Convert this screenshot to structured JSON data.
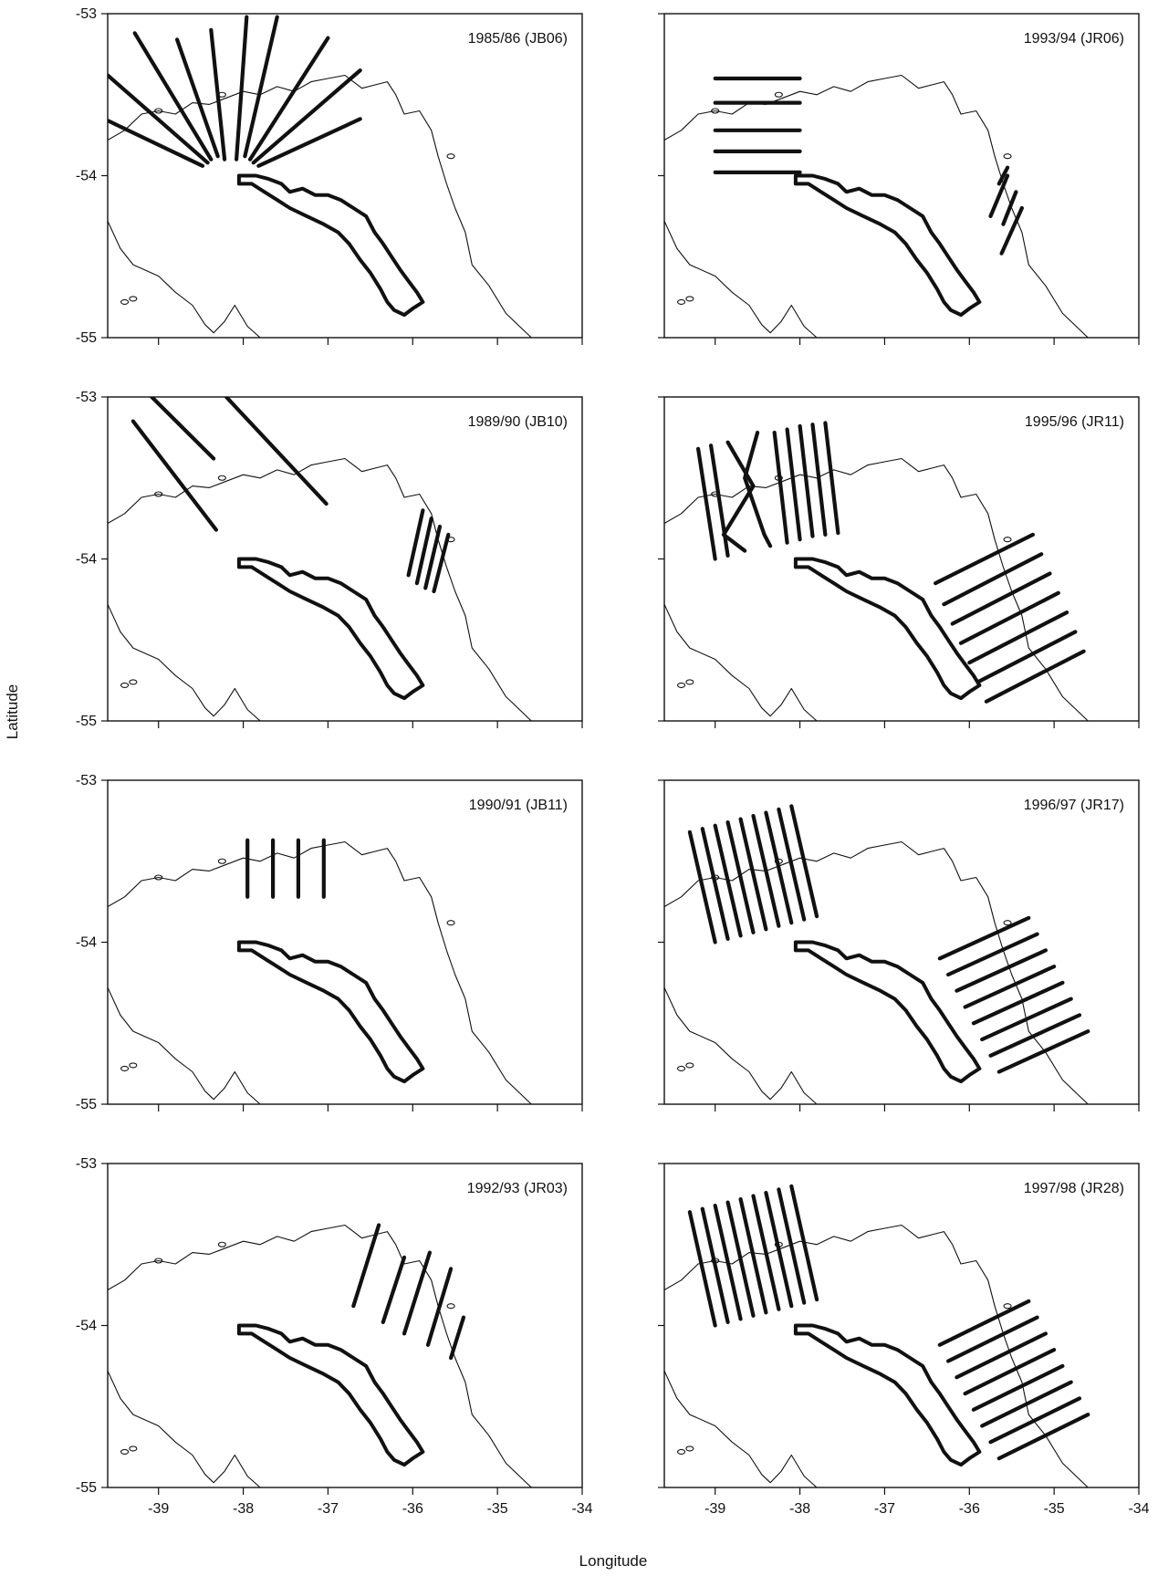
{
  "chart_data": {
    "type": "map",
    "xlabel": "Longitude",
    "ylabel": "Latitude",
    "xlim": [
      -39.6,
      -34
    ],
    "ylim": [
      -55,
      -53
    ],
    "xticks": [
      "-39",
      "-38",
      "-37",
      "-36",
      "-35",
      "-34"
    ],
    "yticks": [
      "-53",
      "-54",
      "-55"
    ],
    "coastline": [
      [
        -39.6,
        -53.78
      ],
      [
        -39.4,
        -53.72
      ],
      [
        -39.2,
        -53.62
      ],
      [
        -39.0,
        -53.6
      ],
      [
        -38.8,
        -53.62
      ],
      [
        -38.6,
        -53.55
      ],
      [
        -38.4,
        -53.56
      ],
      [
        -38.2,
        -53.52
      ],
      [
        -38.0,
        -53.48
      ],
      [
        -37.8,
        -53.5
      ],
      [
        -37.6,
        -53.45
      ],
      [
        -37.4,
        -53.48
      ],
      [
        -37.2,
        -53.42
      ],
      [
        -37.0,
        -53.4
      ],
      [
        -36.8,
        -53.38
      ],
      [
        -36.6,
        -53.46
      ],
      [
        -36.45,
        -53.44
      ],
      [
        -36.3,
        -53.42
      ],
      [
        -36.2,
        -53.5
      ],
      [
        -36.1,
        -53.62
      ],
      [
        -35.92,
        -53.6
      ],
      [
        -35.78,
        -53.72
      ],
      [
        -35.7,
        -53.88
      ],
      [
        -35.6,
        -54.05
      ],
      [
        -35.5,
        -54.2
      ],
      [
        -35.38,
        -54.35
      ],
      [
        -35.3,
        -54.55
      ],
      [
        -35.1,
        -54.68
      ],
      [
        -34.9,
        -54.85
      ],
      [
        -34.6,
        -55.0
      ],
      [
        -39.6,
        -54.28
      ],
      [
        -39.45,
        -54.45
      ],
      [
        -39.3,
        -54.55
      ],
      [
        -39.0,
        -54.62
      ],
      [
        -38.8,
        -54.72
      ],
      [
        -38.6,
        -54.8
      ],
      [
        -38.45,
        -54.92
      ],
      [
        -38.35,
        -54.97
      ],
      [
        -38.22,
        -54.9
      ],
      [
        -38.1,
        -54.8
      ],
      [
        -37.95,
        -54.93
      ],
      [
        -37.8,
        -55.0
      ]
    ],
    "island_outline": [
      [
        -38.05,
        -54.0
      ],
      [
        -37.85,
        -54.0
      ],
      [
        -37.7,
        -54.02
      ],
      [
        -37.55,
        -54.05
      ],
      [
        -37.45,
        -54.1
      ],
      [
        -37.3,
        -54.08
      ],
      [
        -37.15,
        -54.12
      ],
      [
        -37.0,
        -54.12
      ],
      [
        -36.85,
        -54.15
      ],
      [
        -36.7,
        -54.2
      ],
      [
        -36.55,
        -54.25
      ],
      [
        -36.45,
        -54.35
      ],
      [
        -36.35,
        -54.42
      ],
      [
        -36.25,
        -54.5
      ],
      [
        -36.15,
        -54.58
      ],
      [
        -36.05,
        -54.65
      ],
      [
        -35.95,
        -54.72
      ],
      [
        -35.88,
        -54.78
      ],
      [
        -36.0,
        -54.82
      ],
      [
        -36.1,
        -54.86
      ],
      [
        -36.22,
        -54.83
      ],
      [
        -36.3,
        -54.78
      ],
      [
        -36.38,
        -54.7
      ],
      [
        -36.5,
        -54.6
      ],
      [
        -36.62,
        -54.52
      ],
      [
        -36.75,
        -54.42
      ],
      [
        -36.88,
        -54.35
      ],
      [
        -37.05,
        -54.3
      ],
      [
        -37.25,
        -54.25
      ],
      [
        -37.45,
        -54.2
      ],
      [
        -37.6,
        -54.15
      ],
      [
        -37.75,
        -54.1
      ],
      [
        -37.9,
        -54.05
      ],
      [
        -38.05,
        -54.05
      ]
    ],
    "series": [
      {
        "survey": "1985/86 (JB06)",
        "tracks": [
          [
            [
              -39.6,
              -53.38
            ],
            [
              -38.42,
              -53.92
            ]
          ],
          [
            [
              -39.6,
              -53.66
            ],
            [
              -38.48,
              -53.94
            ]
          ],
          [
            [
              -39.28,
              -53.12
            ],
            [
              -38.38,
              -53.9
            ]
          ],
          [
            [
              -38.78,
              -53.16
            ],
            [
              -38.3,
              -53.88
            ]
          ],
          [
            [
              -38.38,
              -53.1
            ],
            [
              -38.22,
              -53.9
            ]
          ],
          [
            [
              -37.96,
              -53.02
            ],
            [
              -38.08,
              -53.9
            ]
          ],
          [
            [
              -37.6,
              -53.02
            ],
            [
              -37.98,
              -53.88
            ]
          ],
          [
            [
              -37.0,
              -53.15
            ],
            [
              -37.92,
              -53.9
            ]
          ],
          [
            [
              -36.62,
              -53.35
            ],
            [
              -37.88,
              -53.92
            ]
          ],
          [
            [
              -36.62,
              -53.65
            ],
            [
              -37.82,
              -53.94
            ]
          ]
        ]
      },
      {
        "survey": "1989/90 (JB10)",
        "tracks": [
          [
            [
              -39.3,
              -53.15
            ],
            [
              -38.32,
              -53.82
            ]
          ],
          [
            [
              -39.08,
              -53.0
            ],
            [
              -38.35,
              -53.38
            ]
          ],
          [
            [
              -38.2,
              -53.0
            ],
            [
              -37.02,
              -53.66
            ]
          ],
          [
            [
              -35.88,
              -53.7
            ],
            [
              -36.05,
              -54.1
            ]
          ],
          [
            [
              -35.78,
              -53.75
            ],
            [
              -35.95,
              -54.15
            ]
          ],
          [
            [
              -35.68,
              -53.8
            ],
            [
              -35.85,
              -54.18
            ]
          ],
          [
            [
              -35.58,
              -53.85
            ],
            [
              -35.75,
              -54.2
            ]
          ]
        ]
      },
      {
        "survey": "1990/91 (JB11)",
        "tracks": [
          [
            [
              -37.95,
              -53.37
            ],
            [
              -37.95,
              -53.72
            ]
          ],
          [
            [
              -37.65,
              -53.37
            ],
            [
              -37.65,
              -53.72
            ]
          ],
          [
            [
              -37.35,
              -53.37
            ],
            [
              -37.35,
              -53.72
            ]
          ],
          [
            [
              -37.05,
              -53.37
            ],
            [
              -37.05,
              -53.72
            ]
          ]
        ]
      },
      {
        "survey": "1992/93 (JR03)",
        "tracks": [
          [
            [
              -36.4,
              -53.38
            ],
            [
              -36.7,
              -53.88
            ]
          ],
          [
            [
              -36.1,
              -53.58
            ],
            [
              -36.35,
              -53.98
            ]
          ],
          [
            [
              -35.8,
              -53.55
            ],
            [
              -36.1,
              -54.05
            ]
          ],
          [
            [
              -35.55,
              -53.65
            ],
            [
              -35.82,
              -54.12
            ]
          ],
          [
            [
              -35.4,
              -53.95
            ],
            [
              -35.55,
              -54.2
            ]
          ]
        ]
      },
      {
        "survey": "1993/94 (JR06)",
        "tracks": [
          [
            [
              -39.0,
              -53.4
            ],
            [
              -38.0,
              -53.4
            ]
          ],
          [
            [
              -39.0,
              -53.55
            ],
            [
              -38.0,
              -53.55
            ]
          ],
          [
            [
              -39.0,
              -53.72
            ],
            [
              -38.0,
              -53.72
            ]
          ],
          [
            [
              -39.0,
              -53.85
            ],
            [
              -38.0,
              -53.85
            ]
          ],
          [
            [
              -39.0,
              -53.98
            ],
            [
              -38.0,
              -53.98
            ]
          ],
          [
            [
              -35.55,
              -53.95
            ],
            [
              -35.65,
              -54.05
            ]
          ],
          [
            [
              -35.55,
              -54.0
            ],
            [
              -35.75,
              -54.25
            ]
          ],
          [
            [
              -35.45,
              -54.1
            ],
            [
              -35.6,
              -54.3
            ]
          ],
          [
            [
              -35.38,
              -54.2
            ],
            [
              -35.62,
              -54.48
            ]
          ]
        ]
      },
      {
        "survey": "1995/96 (JR11)",
        "tracks": [
          [
            [
              -39.2,
              -53.32
            ],
            [
              -39.0,
              -54.0
            ]
          ],
          [
            [
              -39.05,
              -53.3
            ],
            [
              -38.85,
              -53.98
            ]
          ],
          [
            [
              -38.85,
              -53.28
            ],
            [
              -38.55,
              -53.55
            ],
            [
              -38.9,
              -53.85
            ],
            [
              -38.65,
              -53.95
            ]
          ],
          [
            [
              -38.5,
              -53.22
            ],
            [
              -38.65,
              -53.5
            ],
            [
              -38.42,
              -53.85
            ],
            [
              -38.35,
              -53.92
            ]
          ],
          [
            [
              -38.3,
              -53.22
            ],
            [
              -38.15,
              -53.9
            ]
          ],
          [
            [
              -38.15,
              -53.2
            ],
            [
              -38.0,
              -53.88
            ]
          ],
          [
            [
              -38.0,
              -53.18
            ],
            [
              -37.85,
              -53.86
            ]
          ],
          [
            [
              -37.85,
              -53.17
            ],
            [
              -37.7,
              -53.85
            ]
          ],
          [
            [
              -37.7,
              -53.16
            ],
            [
              -37.55,
              -53.84
            ]
          ],
          [
            [
              -35.25,
              -53.85
            ],
            [
              -36.4,
              -54.15
            ]
          ],
          [
            [
              -35.15,
              -53.97
            ],
            [
              -36.3,
              -54.28
            ]
          ],
          [
            [
              -35.05,
              -54.09
            ],
            [
              -36.2,
              -54.4
            ]
          ],
          [
            [
              -34.95,
              -54.21
            ],
            [
              -36.1,
              -54.52
            ]
          ],
          [
            [
              -34.85,
              -54.33
            ],
            [
              -36.0,
              -54.64
            ]
          ],
          [
            [
              -34.75,
              -54.45
            ],
            [
              -35.9,
              -54.76
            ]
          ],
          [
            [
              -34.65,
              -54.57
            ],
            [
              -35.8,
              -54.88
            ]
          ]
        ]
      },
      {
        "survey": "1996/97 (JR17)",
        "tracks": [
          [
            [
              -39.3,
              -53.32
            ],
            [
              -39.0,
              -54.0
            ]
          ],
          [
            [
              -39.15,
              -53.3
            ],
            [
              -38.85,
              -53.98
            ]
          ],
          [
            [
              -39.0,
              -53.28
            ],
            [
              -38.7,
              -53.96
            ]
          ],
          [
            [
              -38.85,
              -53.26
            ],
            [
              -38.55,
              -53.94
            ]
          ],
          [
            [
              -38.7,
              -53.24
            ],
            [
              -38.4,
              -53.92
            ]
          ],
          [
            [
              -38.55,
              -53.22
            ],
            [
              -38.25,
              -53.9
            ]
          ],
          [
            [
              -38.4,
              -53.2
            ],
            [
              -38.1,
              -53.88
            ]
          ],
          [
            [
              -38.25,
              -53.18
            ],
            [
              -37.95,
              -53.86
            ]
          ],
          [
            [
              -38.1,
              -53.16
            ],
            [
              -37.8,
              -53.84
            ]
          ],
          [
            [
              -35.3,
              -53.85
            ],
            [
              -36.35,
              -54.1
            ]
          ],
          [
            [
              -35.2,
              -53.95
            ],
            [
              -36.25,
              -54.2
            ]
          ],
          [
            [
              -35.1,
              -54.05
            ],
            [
              -36.15,
              -54.3
            ]
          ],
          [
            [
              -35.0,
              -54.15
            ],
            [
              -36.05,
              -54.4
            ]
          ],
          [
            [
              -34.9,
              -54.25
            ],
            [
              -35.95,
              -54.5
            ]
          ],
          [
            [
              -34.8,
              -54.35
            ],
            [
              -35.85,
              -54.6
            ]
          ],
          [
            [
              -34.7,
              -54.45
            ],
            [
              -35.75,
              -54.7
            ]
          ],
          [
            [
              -34.6,
              -54.55
            ],
            [
              -35.65,
              -54.8
            ]
          ]
        ]
      },
      {
        "survey": "1997/98 (JR28)",
        "tracks": [
          [
            [
              -39.3,
              -53.3
            ],
            [
              -39.0,
              -54.0
            ]
          ],
          [
            [
              -39.15,
              -53.28
            ],
            [
              -38.85,
              -53.98
            ]
          ],
          [
            [
              -39.0,
              -53.26
            ],
            [
              -38.7,
              -53.96
            ]
          ],
          [
            [
              -38.85,
              -53.24
            ],
            [
              -38.55,
              -53.94
            ]
          ],
          [
            [
              -38.7,
              -53.22
            ],
            [
              -38.4,
              -53.92
            ]
          ],
          [
            [
              -38.55,
              -53.2
            ],
            [
              -38.25,
              -53.9
            ]
          ],
          [
            [
              -38.4,
              -53.18
            ],
            [
              -38.1,
              -53.88
            ]
          ],
          [
            [
              -38.25,
              -53.16
            ],
            [
              -37.95,
              -53.86
            ]
          ],
          [
            [
              -38.1,
              -53.14
            ],
            [
              -37.8,
              -53.84
            ]
          ],
          [
            [
              -35.3,
              -53.85
            ],
            [
              -36.35,
              -54.12
            ]
          ],
          [
            [
              -35.2,
              -53.95
            ],
            [
              -36.25,
              -54.22
            ]
          ],
          [
            [
              -35.1,
              -54.05
            ],
            [
              -36.15,
              -54.32
            ]
          ],
          [
            [
              -35.0,
              -54.15
            ],
            [
              -36.05,
              -54.42
            ]
          ],
          [
            [
              -34.9,
              -54.25
            ],
            [
              -35.95,
              -54.52
            ]
          ],
          [
            [
              -34.8,
              -54.35
            ],
            [
              -35.85,
              -54.62
            ]
          ],
          [
            [
              -34.7,
              -54.45
            ],
            [
              -35.75,
              -54.72
            ]
          ],
          [
            [
              -34.6,
              -54.55
            ],
            [
              -35.65,
              -54.82
            ]
          ]
        ]
      }
    ]
  }
}
